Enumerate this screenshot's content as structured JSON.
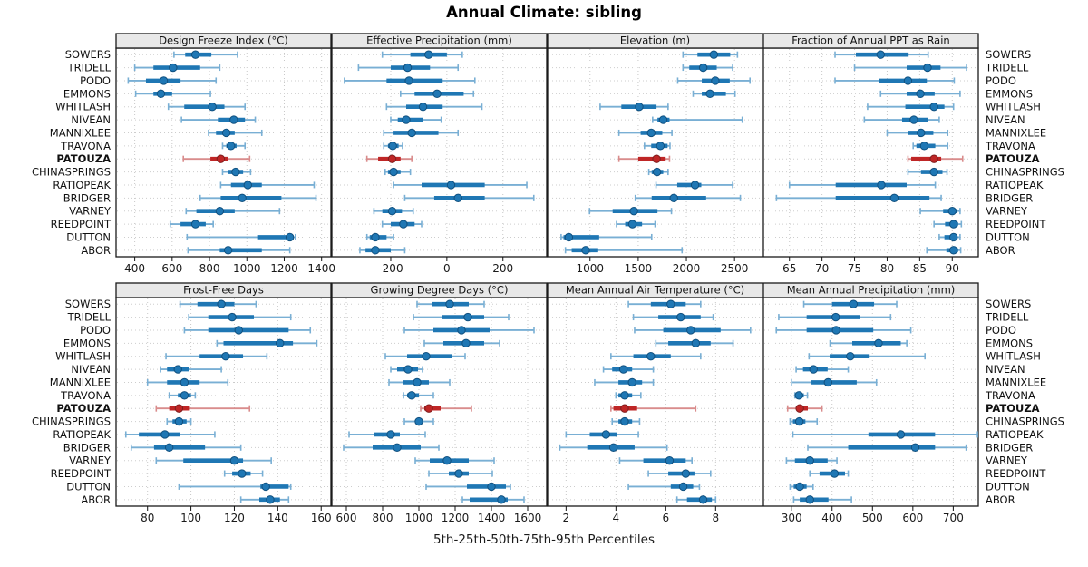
{
  "title": "Annual Climate: sibling",
  "caption": "5th-25th-50th-75th-95th Percentiles",
  "highlight_site": "PATOUZA",
  "colors": {
    "blue": "#1f77b4",
    "blue_light": "#79afd4",
    "blue_dark": "#10507f",
    "red": "#bf2626",
    "red_light": "#d98c8c",
    "red_dark": "#7f1d1d",
    "strip_bg": "#e8e8e8",
    "panel_border": "#1a1a1a",
    "grid_v": "#c8c8c8",
    "grid_h": "#cdcdcd",
    "tick_text": "#1a1a1a"
  },
  "sites": [
    "SOWERS",
    "TRIDELL",
    "PODO",
    "EMMONS",
    "WHITLASH",
    "NIVEAN",
    "MANNIXLEE",
    "TRAVONA",
    "PATOUZA",
    "CHINASPRINGS",
    "RATIOPEAK",
    "BRIDGER",
    "VARNEY",
    "REEDPOINT",
    "DUTTON",
    "ABOR"
  ],
  "chart_data": {
    "type": "dotplot-percentile-trellis",
    "grid": "dotted",
    "percentile_labels": [
      "5th",
      "25th",
      "50th",
      "75th",
      "95th"
    ],
    "layout": {
      "columns": 4,
      "rows_of_panels": 2
    },
    "panels": [
      {
        "title": "Design Freeze Index (°C)",
        "domain": [
          300,
          1450
        ],
        "ticks": [
          400,
          600,
          800,
          1000,
          1200,
          1400
        ],
        "series": [
          [
            610,
            670,
            725,
            810,
            950
          ],
          [
            400,
            500,
            605,
            750,
            855
          ],
          [
            365,
            460,
            555,
            645,
            835
          ],
          [
            405,
            500,
            540,
            600,
            805
          ],
          [
            580,
            665,
            815,
            880,
            990
          ],
          [
            650,
            845,
            930,
            990,
            1045
          ],
          [
            795,
            835,
            890,
            935,
            1080
          ],
          [
            870,
            890,
            915,
            945,
            990
          ],
          [
            660,
            805,
            860,
            900,
            1015
          ],
          [
            870,
            900,
            940,
            980,
            1020
          ],
          [
            860,
            915,
            1005,
            1080,
            1360
          ],
          [
            750,
            860,
            975,
            1185,
            1370
          ],
          [
            675,
            730,
            855,
            935,
            1175
          ],
          [
            590,
            645,
            725,
            780,
            820
          ],
          [
            680,
            1060,
            1230,
            1250,
            1260
          ],
          [
            685,
            855,
            900,
            1080,
            1230
          ]
        ]
      },
      {
        "title": "Effective Precipitation (mm)",
        "domain": [
          -410,
          356
        ],
        "ticks": [
          -200,
          0,
          200
        ],
        "series": [
          [
            -230,
            -130,
            -65,
            0,
            55
          ],
          [
            -315,
            -200,
            -140,
            -60,
            40
          ],
          [
            -365,
            -215,
            -135,
            -15,
            100
          ],
          [
            -165,
            -115,
            -35,
            60,
            95
          ],
          [
            -215,
            -145,
            -85,
            -15,
            125
          ],
          [
            -200,
            -175,
            -145,
            -85,
            -20
          ],
          [
            -225,
            -190,
            -125,
            -30,
            40
          ],
          [
            -225,
            -210,
            -193,
            -172,
            -158
          ],
          [
            -285,
            -245,
            -195,
            -165,
            -125
          ],
          [
            -220,
            -210,
            -190,
            -165,
            -130
          ],
          [
            -190,
            -90,
            15,
            135,
            285
          ],
          [
            -150,
            -45,
            40,
            135,
            310
          ],
          [
            -260,
            -230,
            -195,
            -160,
            -120
          ],
          [
            -230,
            -200,
            -155,
            -115,
            -90
          ],
          [
            -285,
            -275,
            -255,
            -215,
            -190
          ],
          [
            -310,
            -290,
            -255,
            -200,
            -150
          ]
        ]
      },
      {
        "title": "Elevation (m)",
        "domain": [
          560,
          2790
        ],
        "ticks": [
          1000,
          1500,
          2000,
          2500
        ],
        "series": [
          [
            1965,
            2115,
            2285,
            2455,
            2530
          ],
          [
            1965,
            2030,
            2175,
            2315,
            2480
          ],
          [
            1910,
            2160,
            2300,
            2450,
            2660
          ],
          [
            2070,
            2160,
            2245,
            2410,
            2505
          ],
          [
            1105,
            1325,
            1510,
            1690,
            1810
          ],
          [
            1650,
            1700,
            1760,
            1825,
            2580
          ],
          [
            1300,
            1525,
            1635,
            1750,
            1850
          ],
          [
            1565,
            1635,
            1730,
            1805,
            1830
          ],
          [
            1300,
            1500,
            1690,
            1785,
            1825
          ],
          [
            1610,
            1640,
            1695,
            1760,
            1810
          ],
          [
            1685,
            1905,
            2090,
            2155,
            2480
          ],
          [
            1470,
            1640,
            1870,
            2205,
            2560
          ],
          [
            995,
            1235,
            1455,
            1700,
            1845
          ],
          [
            1275,
            1365,
            1440,
            1540,
            1675
          ],
          [
            700,
            725,
            780,
            1095,
            1640
          ],
          [
            745,
            810,
            955,
            1085,
            1955
          ]
        ]
      },
      {
        "title": "Fraction of Annual PPT as Rain",
        "domain": [
          61,
          94
        ],
        "ticks": [
          65,
          70,
          75,
          80,
          85,
          90
        ],
        "series": [
          [
            72,
            75.2,
            79,
            83.3,
            86.3
          ],
          [
            75,
            83,
            86.2,
            88.2,
            92.2
          ],
          [
            72,
            78.7,
            83.2,
            86.1,
            90.3
          ],
          [
            79,
            83,
            85.1,
            87.3,
            91.2
          ],
          [
            77,
            82.8,
            87.2,
            88.8,
            90.2
          ],
          [
            76.5,
            82.3,
            84.1,
            86.3,
            88
          ],
          [
            80,
            83.2,
            85.2,
            87.1,
            89.3
          ],
          [
            84,
            84.5,
            85.7,
            87.4,
            89.3
          ],
          [
            83.2,
            83.7,
            87.2,
            88.3,
            91.6
          ],
          [
            83.2,
            85.2,
            87.2,
            88.5,
            89.2
          ],
          [
            65,
            72.1,
            79.1,
            83,
            87.4
          ],
          [
            63,
            72.1,
            81.1,
            86.5,
            88.3
          ],
          [
            85.1,
            88.6,
            90,
            90.8,
            91.2
          ],
          [
            87.2,
            88.9,
            90.2,
            90.9,
            91.4
          ],
          [
            88,
            88.8,
            90.2,
            90.8,
            91.2
          ],
          [
            86.1,
            89.1,
            90.2,
            90.9,
            91.3
          ]
        ]
      },
      {
        "title": "Frost-Free Days",
        "domain": [
          65.5,
          164.5
        ],
        "ticks": [
          80,
          100,
          120,
          140,
          160
        ],
        "series": [
          [
            95,
            103,
            114,
            120,
            130
          ],
          [
            99,
            108,
            119,
            129,
            146
          ],
          [
            97,
            108,
            122,
            145,
            155
          ],
          [
            112,
            115,
            141,
            147,
            158
          ],
          [
            88.5,
            104,
            116,
            124,
            135
          ],
          [
            86,
            89,
            94,
            99,
            114
          ],
          [
            80,
            89,
            97,
            104,
            117
          ],
          [
            90,
            94,
            97,
            100,
            102
          ],
          [
            84,
            90,
            94.5,
            99.5,
            127
          ],
          [
            89,
            91.5,
            94.5,
            98,
            100
          ],
          [
            70,
            76,
            88,
            95,
            111
          ],
          [
            72.5,
            83,
            90,
            106.5,
            123
          ],
          [
            84,
            96.5,
            120,
            124,
            137
          ],
          [
            115.5,
            119,
            123.5,
            127.5,
            133
          ],
          [
            94.5,
            132,
            134.5,
            145,
            146
          ],
          [
            123,
            131.5,
            136.5,
            141,
            145
          ]
        ]
      },
      {
        "title": "Growing Degree Days (°C)",
        "domain": [
          520,
          1705
        ],
        "ticks": [
          600,
          800,
          1000,
          1200,
          1400,
          1600
        ],
        "series": [
          [
            990,
            1075,
            1170,
            1275,
            1360
          ],
          [
            970,
            1125,
            1270,
            1360,
            1495
          ],
          [
            920,
            1080,
            1235,
            1390,
            1635
          ],
          [
            1030,
            1135,
            1260,
            1360,
            1445
          ],
          [
            815,
            935,
            1040,
            1185,
            1255
          ],
          [
            845,
            880,
            940,
            995,
            1020
          ],
          [
            835,
            915,
            990,
            1055,
            1170
          ],
          [
            915,
            935,
            960,
            1000,
            1080
          ],
          [
            1010,
            1030,
            1055,
            1120,
            1290
          ],
          [
            920,
            980,
            1000,
            1020,
            1080
          ],
          [
            615,
            750,
            845,
            895,
            1035
          ],
          [
            585,
            745,
            880,
            1010,
            1110
          ],
          [
            980,
            1060,
            1155,
            1275,
            1415
          ],
          [
            1055,
            1165,
            1220,
            1275,
            1405
          ],
          [
            1040,
            1265,
            1400,
            1480,
            1505
          ],
          [
            1240,
            1280,
            1455,
            1490,
            1580
          ]
        ]
      },
      {
        "title": "Mean Annual Air Temperature (°C)",
        "domain": [
          1.26,
          9.88
        ],
        "ticks": [
          2,
          4,
          6,
          8
        ],
        "series": [
          [
            4.5,
            5.4,
            6.2,
            6.8,
            7.4
          ],
          [
            4.7,
            5.7,
            6.6,
            7.4,
            7.9
          ],
          [
            4.75,
            5.9,
            7.0,
            8.2,
            9.4
          ],
          [
            5.6,
            6.1,
            7.2,
            7.8,
            8.7
          ],
          [
            3.8,
            4.7,
            5.4,
            6.2,
            7.4
          ],
          [
            3.5,
            3.85,
            4.3,
            4.65,
            5.5
          ],
          [
            3.15,
            4.1,
            4.65,
            5.05,
            5.5
          ],
          [
            4.0,
            4.1,
            4.35,
            4.65,
            5.0
          ],
          [
            3.8,
            3.9,
            4.35,
            4.85,
            7.2
          ],
          [
            3.85,
            4.1,
            4.35,
            4.65,
            4.95
          ],
          [
            2.0,
            2.95,
            3.6,
            4.05,
            4.9
          ],
          [
            1.75,
            2.85,
            3.9,
            4.75,
            6.05
          ],
          [
            4.15,
            5.1,
            6.15,
            6.8,
            7.05
          ],
          [
            5.3,
            6.1,
            6.8,
            7.15,
            7.8
          ],
          [
            4.5,
            6.2,
            6.7,
            7.1,
            7.35
          ],
          [
            6.45,
            6.85,
            7.5,
            7.85,
            8.0
          ]
        ]
      },
      {
        "title": "Mean Annual Precipitation (mm)",
        "domain": [
          230,
          762
        ],
        "ticks": [
          300,
          400,
          500,
          600,
          700
        ],
        "series": [
          [
            330,
            400,
            453,
            504,
            560
          ],
          [
            268,
            337,
            409,
            470,
            545
          ],
          [
            262,
            337,
            410,
            502,
            595
          ],
          [
            395,
            450,
            515,
            570,
            585
          ],
          [
            343,
            394,
            445,
            493,
            630
          ],
          [
            311,
            328,
            354,
            389,
            440
          ],
          [
            300,
            349,
            390,
            461,
            510
          ],
          [
            308,
            311,
            318,
            330,
            339
          ],
          [
            290,
            312,
            320,
            340,
            375
          ],
          [
            296,
            303,
            319,
            334,
            363
          ],
          [
            303,
            490,
            570,
            655,
            760
          ],
          [
            340,
            440,
            606,
            655,
            732
          ],
          [
            287,
            308,
            345,
            389,
            412
          ],
          [
            345,
            369,
            406,
            432,
            440
          ],
          [
            296,
            305,
            320,
            337,
            353
          ],
          [
            305,
            320,
            345,
            391,
            448
          ]
        ]
      }
    ]
  }
}
